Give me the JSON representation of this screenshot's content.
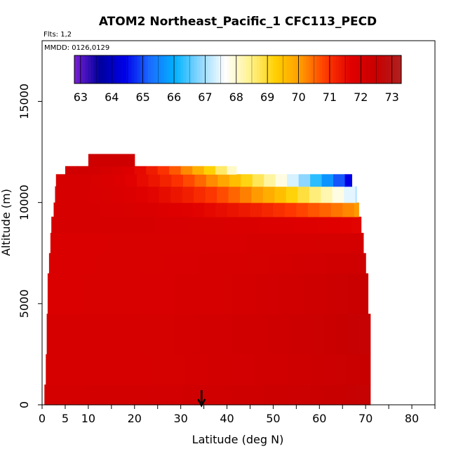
{
  "chart_data": {
    "type": "heatmap",
    "title": "ATOM2 Northeast_Pacific_1 CFC113_PECD",
    "notes": [
      "Flts: 1,2",
      "MMDD: 0126,0129"
    ],
    "xlabel": "Latitude (deg N)",
    "ylabel": "Altitude (m)",
    "xlim": [
      0,
      85
    ],
    "ylim": [
      0,
      18000
    ],
    "xticks": [
      0,
      5,
      10,
      20,
      30,
      40,
      50,
      60,
      70,
      80
    ],
    "yticks": [
      0,
      5000,
      10000,
      15000
    ],
    "colorbar": {
      "ticks": [
        63,
        64,
        65,
        66,
        67,
        68,
        69,
        70,
        71,
        72,
        73
      ],
      "range": [
        62.8,
        73.3
      ],
      "colors": [
        "#7a1fd6",
        "#00009c",
        "#0000e8",
        "#1a6cff",
        "#00b2ff",
        "#8fd8ff",
        "#ffffff",
        "#fff28c",
        "#ffd000",
        "#ff9a00",
        "#ff3a00",
        "#e00000",
        "#c80000",
        "#b02020"
      ]
    },
    "marker_arrow_latitude": 34.5,
    "bands": [
      {
        "alt": [
          0,
          1000
        ],
        "lat": [
          0.5,
          71
        ],
        "v0": 72.1,
        "v1": 72.6
      },
      {
        "alt": [
          1000,
          2500
        ],
        "lat": [
          0.8,
          71
        ],
        "v0": 72.0,
        "v1": 72.5
      },
      {
        "alt": [
          2500,
          4500
        ],
        "lat": [
          1.0,
          71
        ],
        "v0": 72.0,
        "v1": 72.6
      },
      {
        "alt": [
          4500,
          6500
        ],
        "lat": [
          1.2,
          70.5
        ],
        "v0": 71.9,
        "v1": 72.5
      },
      {
        "alt": [
          6500,
          7500
        ],
        "lat": [
          1.5,
          70
        ],
        "v0": 71.9,
        "v1": 72.3
      },
      {
        "alt": [
          7500,
          8500
        ],
        "lat": [
          1.8,
          69.5
        ],
        "v0": 71.9,
        "v1": 72.1
      },
      {
        "alt": [
          8500,
          9300
        ],
        "lat": [
          2.0,
          69
        ],
        "v0": 72.0,
        "v1": 71.6
      },
      {
        "alt": [
          9300,
          10000
        ],
        "lat": [
          2.5,
          68.5
        ],
        "v0": 72.0,
        "v1": 70.0
      },
      {
        "alt": [
          10000,
          10800
        ],
        "lat": [
          2.8,
          68
        ],
        "v0": 72.0,
        "v1": 67.0
      },
      {
        "alt": [
          10800,
          11400
        ],
        "lat": [
          3.0,
          67
        ],
        "v0": 72.0,
        "v1": 64.0
      },
      {
        "alt": [
          11400,
          11800
        ],
        "lat": [
          5.0,
          42
        ],
        "v0": 72.2,
        "v1": 67.5
      },
      {
        "alt": [
          11800,
          12400
        ],
        "lat": [
          10.0,
          20
        ],
        "v0": 72.3,
        "v1": 72.2
      }
    ]
  }
}
